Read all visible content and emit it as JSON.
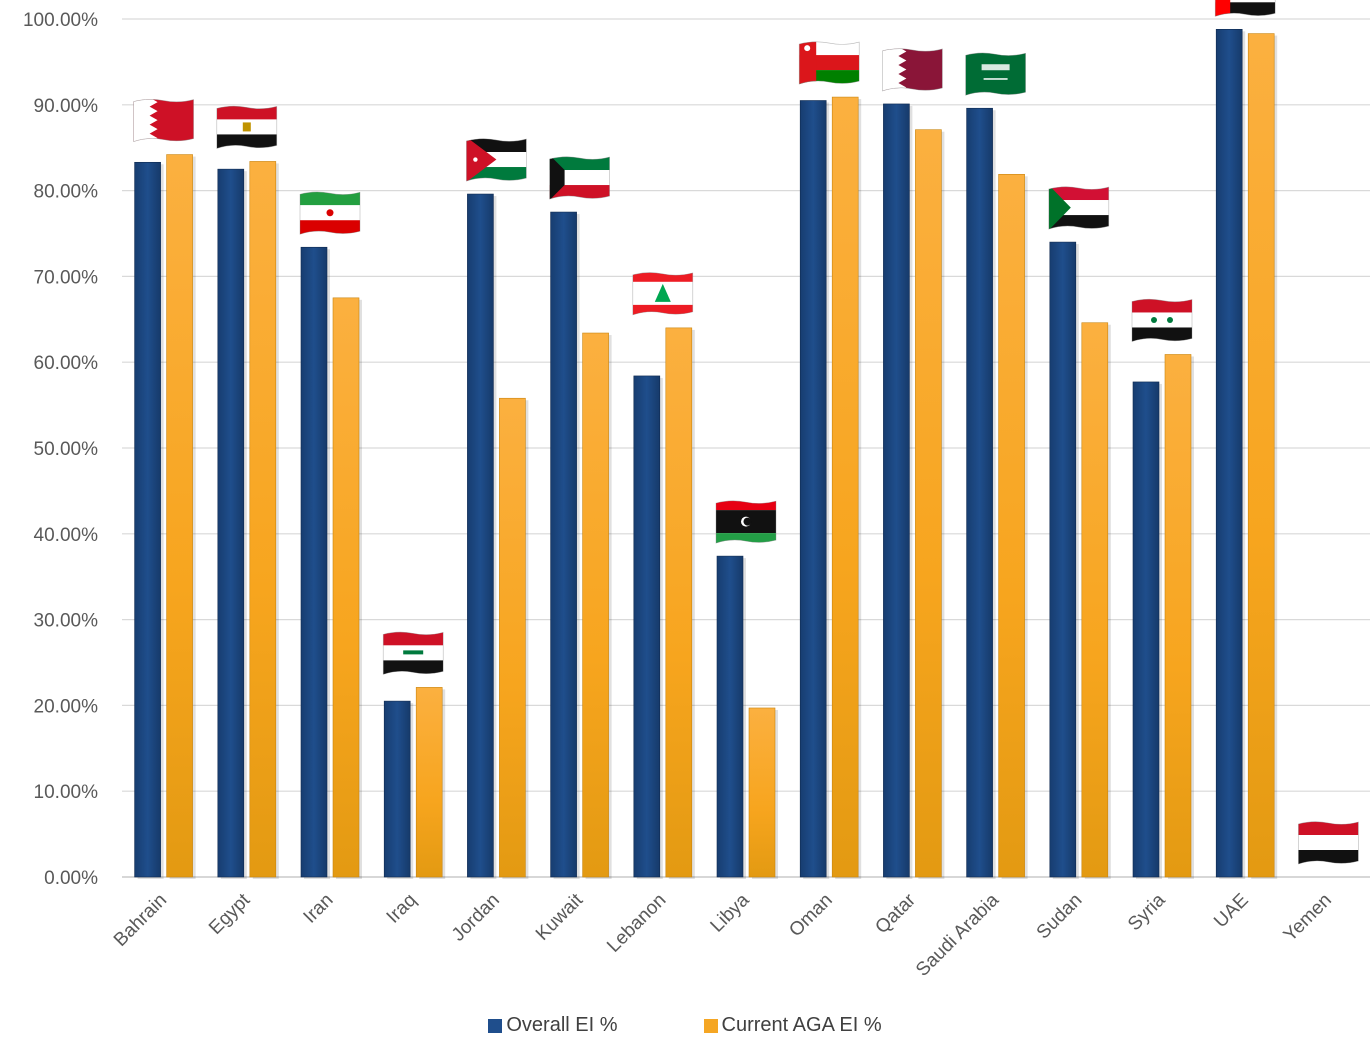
{
  "chart_data": {
    "type": "bar",
    "categories": [
      "Bahrain",
      "Egypt",
      "Iran",
      "Iraq",
      "Jordan",
      "Kuwait",
      "Lebanon",
      "Libya",
      "Oman",
      "Qatar",
      "Saudi Arabia",
      "Sudan",
      "Syria",
      "UAE",
      "Yemen"
    ],
    "series": [
      {
        "name": "Overall EI %",
        "color": "#1F4E8C",
        "values": [
          83.3,
          82.5,
          73.4,
          20.5,
          79.6,
          77.5,
          58.4,
          37.4,
          90.5,
          90.1,
          89.6,
          74.0,
          57.7,
          98.8,
          0
        ]
      },
      {
        "name": "Current AGA EI %",
        "color": "#F5A623",
        "values": [
          84.2,
          83.4,
          67.5,
          22.1,
          55.8,
          63.4,
          64.0,
          19.7,
          90.9,
          87.1,
          81.9,
          64.6,
          60.9,
          98.3,
          0
        ]
      }
    ],
    "y_ticks": [
      "0.00%",
      "10.00%",
      "20.00%",
      "30.00%",
      "40.00%",
      "50.00%",
      "60.00%",
      "70.00%",
      "80.00%",
      "90.00%",
      "100.00%"
    ],
    "ylim": [
      0,
      100
    ],
    "grid": true,
    "legend_position": "bottom",
    "flag_icons": [
      "bahrain-flag-icon",
      "egypt-flag-icon",
      "iran-flag-icon",
      "iraq-flag-icon",
      "jordan-flag-icon",
      "kuwait-flag-icon",
      "lebanon-flag-icon",
      "libya-flag-icon",
      "oman-flag-icon",
      "qatar-flag-icon",
      "saudi-arabia-flag-icon",
      "sudan-flag-icon",
      "syria-flag-icon",
      "uae-flag-icon",
      "yemen-flag-icon"
    ]
  }
}
